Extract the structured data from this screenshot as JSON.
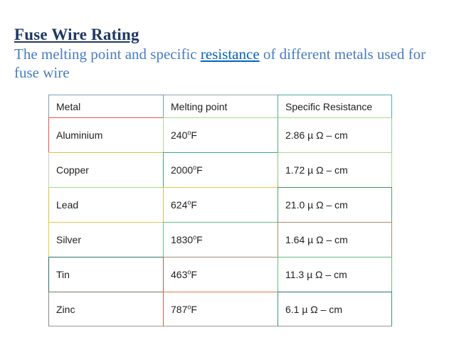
{
  "title": "Fuse Wire Rating",
  "subtitle": {
    "before_link": "The melting point and specific ",
    "link_text": "resistance",
    "after_link": " of different metals used for fuse wire"
  },
  "table": {
    "headers": [
      "Metal",
      "Melting point",
      "Specific Resistance"
    ],
    "degree_sup": "o",
    "degree_unit": "F",
    "rows": [
      {
        "metal": "Aluminium",
        "melting_value": "240",
        "resistance": "2.86 µ Ω – cm"
      },
      {
        "metal": "Copper",
        "melting_value": "2000",
        "resistance": "1.72 µ Ω – cm"
      },
      {
        "metal": "Lead",
        "melting_value": "624",
        "resistance": "21.0 µ Ω – cm"
      },
      {
        "metal": "Silver",
        "melting_value": "1830",
        "resistance": "1.64 µ Ω – cm"
      },
      {
        "metal": "Tin",
        "melting_value": "463",
        "resistance": "11.3 µ Ω – cm"
      },
      {
        "metal": "Zinc",
        "melting_value": "787",
        "resistance": "6.1 µ Ω – cm"
      }
    ]
  },
  "colors": {
    "title": "#1f3864",
    "subtitle": "#4a7cc0",
    "link": "#0563c1",
    "cell_text": "#1f1f1f"
  }
}
